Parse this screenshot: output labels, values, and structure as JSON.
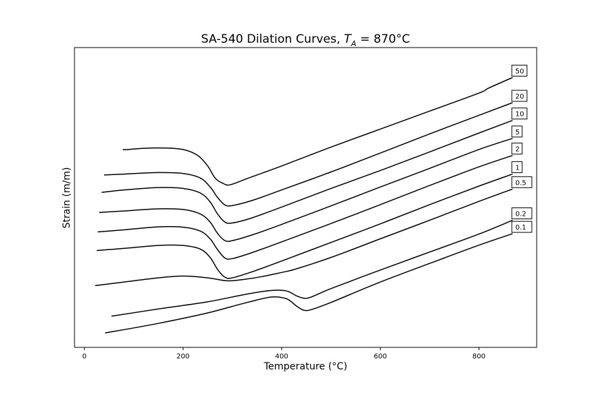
{
  "chart_data": {
    "type": "line",
    "title_main": "SA-540 Dilation Curves, ",
    "title_var": "T",
    "title_sub": "A",
    "title_rest": " = 870°C",
    "xlabel": "Temperature (°C)",
    "ylabel": "Strain (m/m)",
    "xlim": [
      -20,
      917
    ],
    "ylim": [
      0,
      1
    ],
    "yticks_shown": false,
    "xticks": [
      0,
      200,
      400,
      600,
      800
    ],
    "legend_placement": "inline-right",
    "colors": {
      "line": "#000000",
      "background": "#ffffff"
    },
    "series": [
      {
        "name": "50",
        "x": [
          78,
          90,
          120,
          160,
          200,
          230,
          250,
          265,
          280,
          295,
          330,
          400,
          500,
          600,
          700,
          800,
          820,
          868
        ],
        "y": [
          0.659,
          0.66,
          0.664,
          0.665,
          0.66,
          0.64,
          0.605,
          0.565,
          0.548,
          0.542,
          0.563,
          0.605,
          0.668,
          0.728,
          0.788,
          0.848,
          0.865,
          0.9
        ]
      },
      {
        "name": "20",
        "x": [
          40,
          80,
          150,
          200,
          235,
          255,
          270,
          285,
          300,
          340,
          400,
          500,
          600,
          700,
          800,
          868
        ],
        "y": [
          0.575,
          0.578,
          0.583,
          0.58,
          0.565,
          0.535,
          0.5,
          0.475,
          0.473,
          0.49,
          0.525,
          0.585,
          0.648,
          0.712,
          0.774,
          0.816
        ]
      },
      {
        "name": "10",
        "x": [
          35,
          80,
          150,
          200,
          235,
          255,
          270,
          285,
          300,
          340,
          400,
          500,
          600,
          700,
          800,
          868
        ],
        "y": [
          0.517,
          0.525,
          0.533,
          0.53,
          0.515,
          0.485,
          0.445,
          0.418,
          0.415,
          0.432,
          0.468,
          0.53,
          0.59,
          0.652,
          0.715,
          0.757
        ]
      },
      {
        "name": "5",
        "x": [
          30,
          80,
          150,
          200,
          235,
          255,
          270,
          285,
          300,
          340,
          400,
          500,
          600,
          700,
          800,
          868
        ],
        "y": [
          0.45,
          0.455,
          0.462,
          0.46,
          0.445,
          0.418,
          0.38,
          0.356,
          0.356,
          0.375,
          0.41,
          0.472,
          0.535,
          0.597,
          0.66,
          0.697
        ]
      },
      {
        "name": "2",
        "x": [
          27,
          80,
          150,
          200,
          235,
          255,
          270,
          285,
          300,
          340,
          400,
          500,
          600,
          700,
          800,
          868
        ],
        "y": [
          0.385,
          0.392,
          0.402,
          0.401,
          0.388,
          0.362,
          0.326,
          0.298,
          0.296,
          0.316,
          0.352,
          0.413,
          0.476,
          0.54,
          0.602,
          0.64
        ]
      },
      {
        "name": "1",
        "x": [
          25,
          80,
          150,
          200,
          235,
          255,
          270,
          285,
          300,
          340,
          400,
          500,
          600,
          700,
          800,
          868
        ],
        "y": [
          0.323,
          0.33,
          0.34,
          0.34,
          0.328,
          0.3,
          0.26,
          0.234,
          0.232,
          0.252,
          0.288,
          0.35,
          0.412,
          0.476,
          0.538,
          0.578
        ]
      },
      {
        "name": "0.5",
        "x": [
          22,
          80,
          150,
          200,
          250,
          290,
          320,
          360,
          400,
          430,
          500,
          600,
          700,
          800,
          868
        ],
        "y": [
          0.206,
          0.218,
          0.232,
          0.238,
          0.232,
          0.222,
          0.226,
          0.236,
          0.25,
          0.262,
          0.3,
          0.362,
          0.424,
          0.487,
          0.528
        ]
      },
      {
        "name": "0.2",
        "x": [
          55,
          150,
          250,
          330,
          380,
          410,
          430,
          445,
          460,
          500,
          600,
          700,
          800,
          868
        ],
        "y": [
          0.104,
          0.128,
          0.152,
          0.178,
          0.19,
          0.188,
          0.172,
          0.164,
          0.168,
          0.196,
          0.258,
          0.318,
          0.378,
          0.424
        ]
      },
      {
        "name": "0.1",
        "x": [
          42,
          150,
          250,
          330,
          380,
          410,
          430,
          445,
          460,
          500,
          600,
          700,
          800,
          868
        ],
        "y": [
          0.048,
          0.08,
          0.115,
          0.15,
          0.168,
          0.162,
          0.138,
          0.124,
          0.126,
          0.15,
          0.218,
          0.28,
          0.341,
          0.379
        ]
      }
    ]
  }
}
